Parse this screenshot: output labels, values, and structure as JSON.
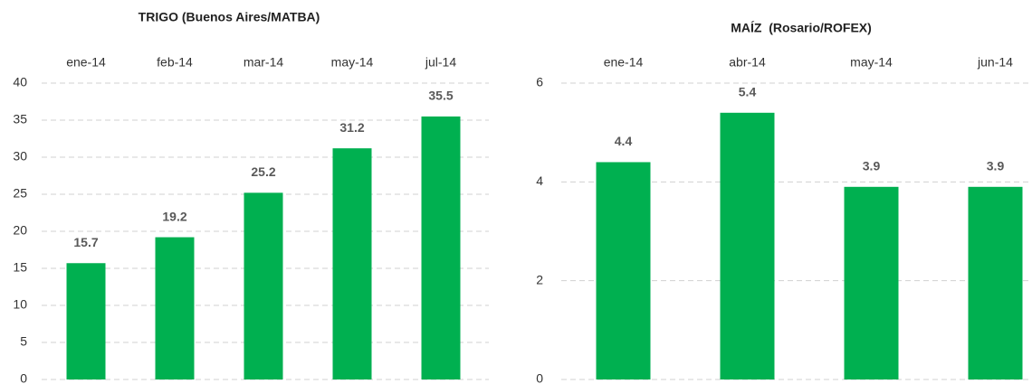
{
  "chart_data": [
    {
      "type": "bar",
      "title": "TRIGO (Buenos Aires/MATBA)",
      "categories": [
        "ene-14",
        "feb-14",
        "mar-14",
        "may-14",
        "jul-14"
      ],
      "values": [
        15.7,
        19.2,
        25.2,
        31.2,
        35.5
      ],
      "color": "#00b050",
      "ylim": [
        0,
        40
      ],
      "yticks": [
        0,
        5,
        10,
        15,
        20,
        25,
        30,
        35,
        40
      ],
      "grid": true
    },
    {
      "type": "bar",
      "title": "MAÍZ  (Rosario/ROFEX)",
      "categories": [
        "ene-14",
        "abr-14",
        "may-14",
        "jun-14"
      ],
      "values": [
        4.4,
        5.4,
        3.9,
        3.9
      ],
      "color": "#00b050",
      "ylim": [
        0,
        6
      ],
      "yticks": [
        0,
        2,
        4,
        6
      ],
      "grid": true
    }
  ]
}
